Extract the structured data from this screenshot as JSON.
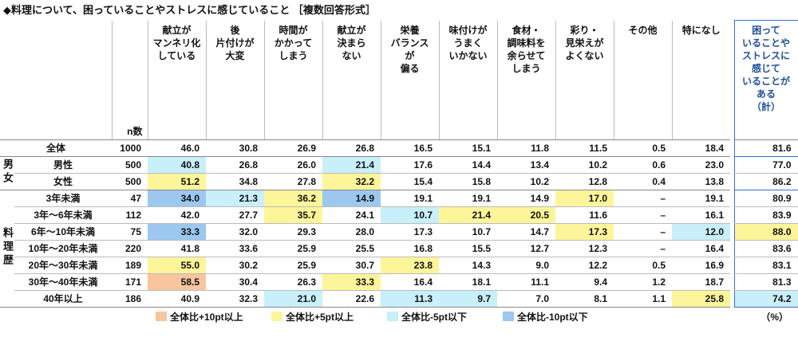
{
  "title": "◆料理について、困っていることやストレスに感じていること ［複数回答形式］",
  "table": {
    "n_header": "n数",
    "columns": [
      [
        "献立が",
        "マンネリ化",
        "している"
      ],
      [
        "後",
        "片付けが",
        "大変"
      ],
      [
        "時間が",
        "かかって",
        "しまう"
      ],
      [
        "献立が",
        "決まら",
        "ない"
      ],
      [
        "栄養",
        "バランス",
        "が",
        "偏る"
      ],
      [
        "味付けが",
        "うまく",
        "いかない"
      ],
      [
        "食材・",
        "調味料を",
        "余らせて",
        "しまう"
      ],
      [
        "彩り・",
        "見栄えが",
        "よくない"
      ],
      [
        "その他"
      ],
      [
        "特になし"
      ]
    ],
    "summary_column": [
      "困って",
      "いることや",
      "ストレスに",
      "感じて",
      "いることが",
      "ある",
      "（計）"
    ],
    "groups": [
      {
        "rows": [
          {
            "label": "全体",
            "n": "1000",
            "values": [
              "46.0",
              "30.8",
              "26.9",
              "26.8",
              "16.5",
              "15.1",
              "11.8",
              "11.5",
              "0.5",
              "18.4"
            ],
            "total": "81.6",
            "colors": [
              null,
              null,
              null,
              null,
              null,
              null,
              null,
              null,
              null,
              null,
              null
            ]
          }
        ]
      },
      {
        "label": "男女",
        "rows": [
          {
            "label": "男性",
            "n": "500",
            "values": [
              "40.8",
              "26.8",
              "26.0",
              "21.4",
              "17.6",
              "14.4",
              "13.4",
              "10.2",
              "0.6",
              "23.0"
            ],
            "total": "77.0",
            "colors": [
              "#c8effa",
              null,
              null,
              "#c8effa",
              null,
              null,
              null,
              null,
              null,
              null,
              null
            ]
          },
          {
            "label": "女性",
            "n": "500",
            "values": [
              "51.2",
              "34.8",
              "27.8",
              "32.2",
              "15.4",
              "15.8",
              "10.2",
              "12.8",
              "0.4",
              "13.8"
            ],
            "total": "86.2",
            "colors": [
              "#fdf59a",
              null,
              null,
              "#fdf59a",
              null,
              null,
              null,
              null,
              null,
              null,
              null
            ]
          }
        ]
      },
      {
        "label": "料理歴",
        "rows": [
          {
            "label": "3年未満",
            "n": "47",
            "values": [
              "34.0",
              "21.3",
              "36.2",
              "14.9",
              "19.1",
              "19.1",
              "14.9",
              "17.0",
              "–",
              "19.1"
            ],
            "total": "80.9",
            "colors": [
              "#9cc8ef",
              "#c8effa",
              "#fdf59a",
              "#9cc8ef",
              null,
              null,
              null,
              "#fdf59a",
              null,
              null,
              null
            ]
          },
          {
            "label": "3年～6年未満",
            "n": "112",
            "values": [
              "42.0",
              "27.7",
              "35.7",
              "24.1",
              "10.7",
              "21.4",
              "20.5",
              "11.6",
              "–",
              "16.1"
            ],
            "total": "83.9",
            "colors": [
              null,
              null,
              "#fdf59a",
              null,
              "#c8effa",
              "#fdf59a",
              "#fdf59a",
              null,
              null,
              null,
              null
            ]
          },
          {
            "label": "6年～10年未満",
            "n": "75",
            "values": [
              "33.3",
              "32.0",
              "29.3",
              "28.0",
              "17.3",
              "10.7",
              "14.7",
              "17.3",
              "–",
              "12.0"
            ],
            "total": "88.0",
            "colors": [
              "#9cc8ef",
              null,
              null,
              null,
              null,
              null,
              null,
              "#fdf59a",
              null,
              "#c8effa",
              "#fdf59a"
            ]
          },
          {
            "label": "10年～20年未満",
            "n": "220",
            "values": [
              "41.8",
              "33.6",
              "25.9",
              "25.5",
              "16.8",
              "15.5",
              "12.7",
              "12.3",
              "–",
              "16.4"
            ],
            "total": "83.6",
            "colors": [
              null,
              null,
              null,
              null,
              null,
              null,
              null,
              null,
              null,
              null,
              null
            ]
          },
          {
            "label": "20年～30年未満",
            "n": "189",
            "values": [
              "55.0",
              "30.2",
              "25.9",
              "30.7",
              "23.8",
              "14.3",
              "9.0",
              "12.2",
              "0.5",
              "16.9"
            ],
            "total": "83.1",
            "colors": [
              "#fdf59a",
              null,
              null,
              null,
              "#fdf59a",
              null,
              null,
              null,
              null,
              null,
              null
            ]
          },
          {
            "label": "30年～40年未満",
            "n": "171",
            "values": [
              "58.5",
              "30.4",
              "26.3",
              "33.3",
              "16.4",
              "18.1",
              "11.1",
              "9.4",
              "1.2",
              "18.7"
            ],
            "total": "81.3",
            "colors": [
              "#f8c59e",
              null,
              null,
              "#fdf59a",
              null,
              null,
              null,
              null,
              null,
              null,
              null
            ]
          },
          {
            "label": "40年以上",
            "n": "186",
            "values": [
              "40.9",
              "32.3",
              "21.0",
              "22.6",
              "11.3",
              "9.7",
              "7.0",
              "8.1",
              "1.1",
              "25.8"
            ],
            "total": "74.2",
            "colors": [
              null,
              null,
              "#c8effa",
              null,
              "#c8effa",
              "#c8effa",
              null,
              null,
              null,
              "#fdf59a",
              "#c8effa"
            ]
          }
        ]
      }
    ]
  },
  "legend": [
    {
      "label": "全体比+10pt以上",
      "color": "#f8c59e"
    },
    {
      "label": "全体比+5pt以上",
      "color": "#fdf59a"
    },
    {
      "label": "全体比-5pt以下",
      "color": "#c8effa"
    },
    {
      "label": "全体比-10pt以下",
      "color": "#9cc8ef"
    }
  ],
  "unit": "（%）"
}
